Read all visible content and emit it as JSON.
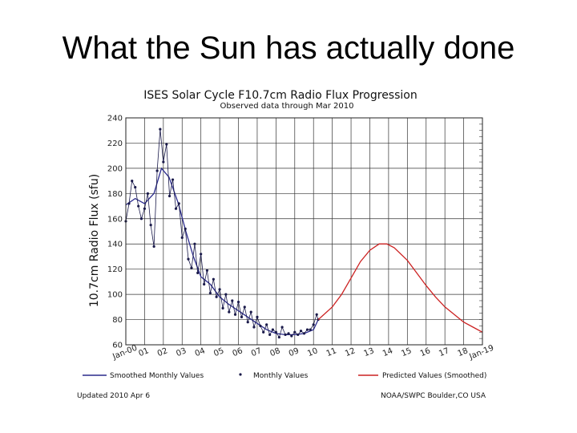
{
  "slide": {
    "title": "What the Sun has actually done"
  },
  "chart_data": {
    "type": "line",
    "title": "ISES Solar Cycle F10.7cm Radio Flux Progression",
    "subtitle": "Observed data through Mar 2010",
    "ylabel": "10.7cm Radio Flux (sfu)",
    "ylim": [
      60,
      240
    ],
    "yticks": [
      60,
      80,
      100,
      120,
      140,
      160,
      180,
      200,
      220,
      240
    ],
    "x_tick_labels": [
      "Jan-00",
      "01",
      "02",
      "03",
      "04",
      "05",
      "06",
      "07",
      "08",
      "09",
      "10",
      "11",
      "12",
      "13",
      "14",
      "15",
      "16",
      "17",
      "18",
      "Jan-19"
    ],
    "x_range_years": [
      2000,
      2019
    ],
    "grid": true,
    "legend": {
      "placement": "bottom",
      "entries": [
        "Smoothed Monthly Values",
        "Monthly Values",
        "Predicted Values (Smoothed)"
      ]
    },
    "colors": {
      "smoothed": "#2a2a8c",
      "monthly": "#1a1a4a",
      "predicted": "#cc2222",
      "grid": "#333333"
    },
    "series": [
      {
        "name": "Smoothed Monthly Values",
        "x": [
          2000.0,
          2000.5,
          2001.0,
          2001.5,
          2001.9,
          2002.3,
          2002.8,
          2003.2,
          2003.6,
          2004.0,
          2004.5,
          2005.0,
          2005.5,
          2006.0,
          2006.5,
          2007.0,
          2007.5,
          2008.0,
          2008.5,
          2009.0,
          2009.5,
          2010.0,
          2010.25
        ],
        "y": [
          171,
          176,
          172,
          180,
          200,
          193,
          172,
          150,
          130,
          114,
          108,
          98,
          92,
          87,
          82,
          77,
          72,
          69,
          68,
          68,
          69,
          72,
          80
        ]
      },
      {
        "name": "Monthly Values",
        "x": [
          2000.0,
          2000.17,
          2000.33,
          2000.5,
          2000.67,
          2000.83,
          2001.0,
          2001.17,
          2001.33,
          2001.5,
          2001.67,
          2001.83,
          2002.0,
          2002.17,
          2002.33,
          2002.5,
          2002.67,
          2002.83,
          2003.0,
          2003.17,
          2003.33,
          2003.5,
          2003.67,
          2003.83,
          2004.0,
          2004.17,
          2004.33,
          2004.5,
          2004.67,
          2004.83,
          2005.0,
          2005.17,
          2005.33,
          2005.5,
          2005.67,
          2005.83,
          2006.0,
          2006.17,
          2006.33,
          2006.5,
          2006.67,
          2006.83,
          2007.0,
          2007.17,
          2007.33,
          2007.5,
          2007.67,
          2007.83,
          2008.0,
          2008.17,
          2008.33,
          2008.5,
          2008.67,
          2008.83,
          2009.0,
          2009.17,
          2009.33,
          2009.5,
          2009.67,
          2009.83,
          2010.0,
          2010.17,
          2010.25
        ],
        "y": [
          158,
          172,
          190,
          185,
          170,
          160,
          168,
          180,
          155,
          138,
          198,
          231,
          205,
          219,
          178,
          191,
          168,
          172,
          145,
          152,
          128,
          121,
          140,
          117,
          132,
          108,
          119,
          101,
          112,
          98,
          104,
          89,
          100,
          86,
          95,
          84,
          94,
          82,
          90,
          78,
          86,
          74,
          82,
          75,
          70,
          76,
          68,
          72,
          70,
          66,
          74,
          68,
          69,
          67,
          70,
          68,
          71,
          69,
          72,
          72,
          76,
          84,
          80
        ]
      },
      {
        "name": "Predicted Values (Smoothed)",
        "x": [
          2010.25,
          2011.0,
          2011.5,
          2012.0,
          2012.5,
          2013.0,
          2013.5,
          2013.9,
          2014.3,
          2015.0,
          2015.5,
          2016.0,
          2016.5,
          2017.0,
          2017.5,
          2018.0,
          2018.5,
          2019.0
        ],
        "y": [
          80,
          90,
          100,
          113,
          126,
          135,
          140,
          140,
          137,
          127,
          117,
          107,
          98,
          90,
          84,
          78,
          74,
          70
        ]
      }
    ]
  },
  "footer": {
    "updated": "Updated 2010 Apr 6",
    "credit": "NOAA/SWPC Boulder,CO USA"
  }
}
